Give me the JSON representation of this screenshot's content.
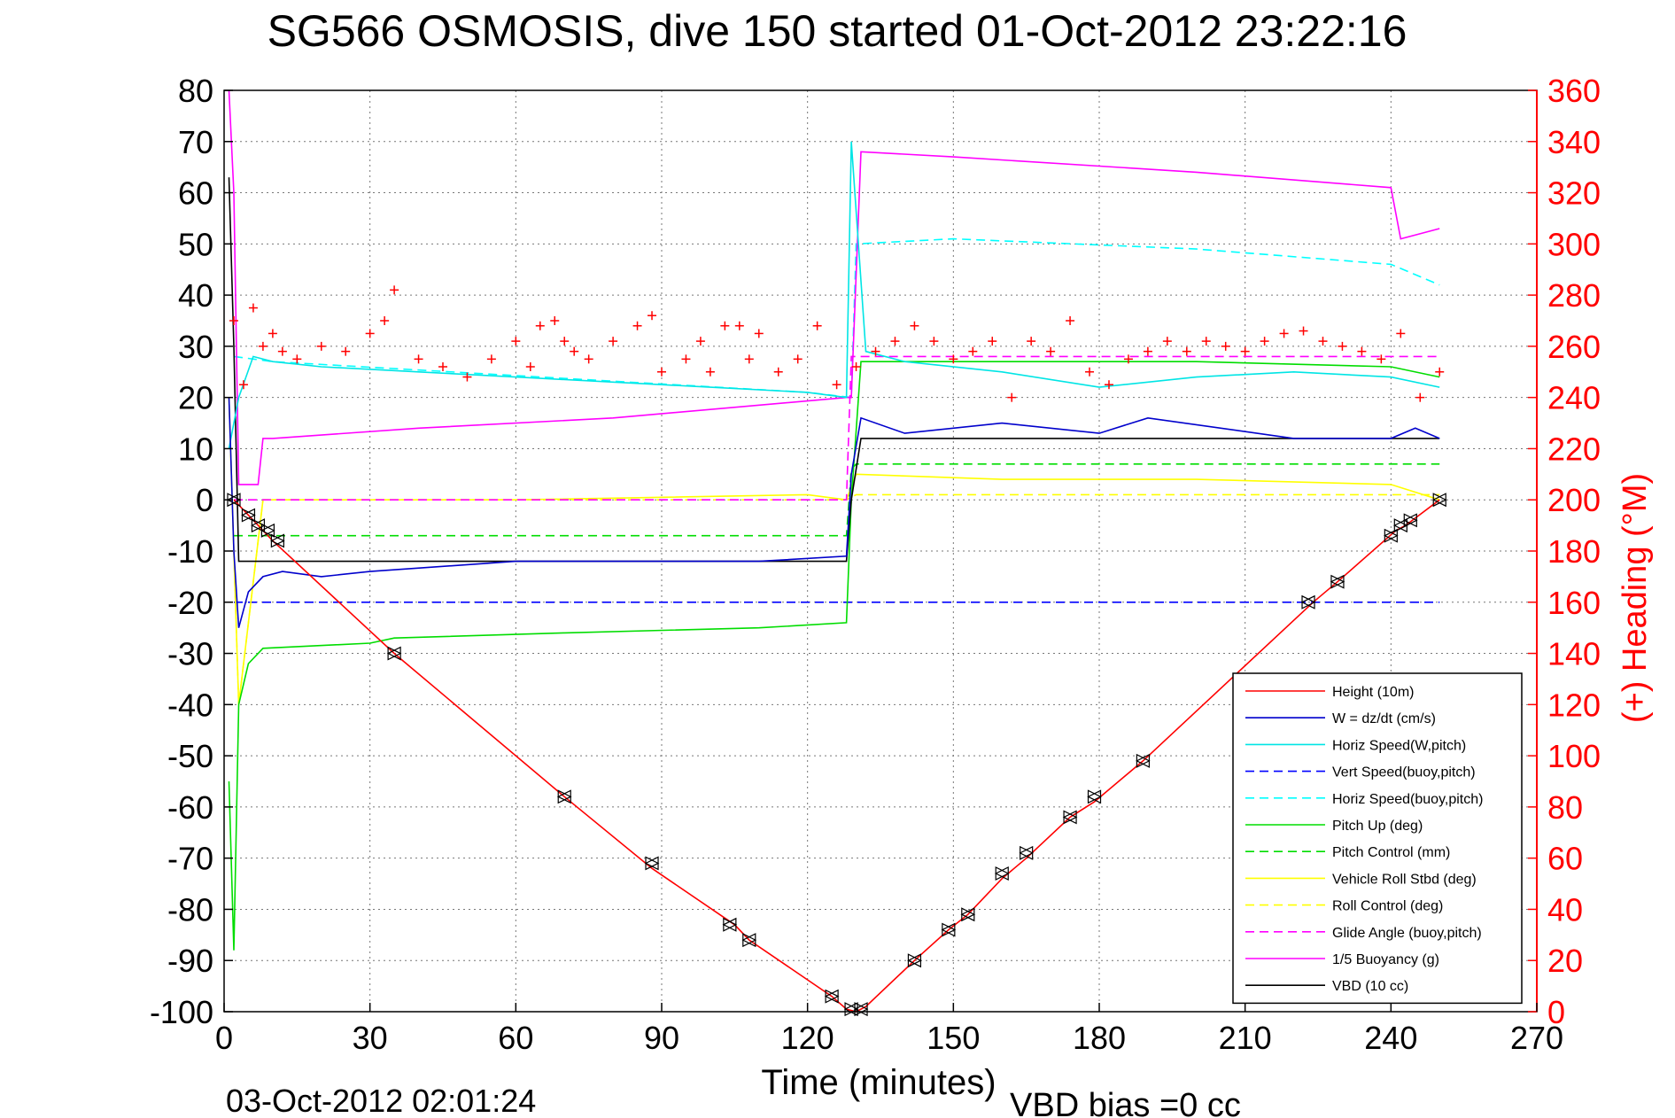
{
  "chart_data": {
    "type": "line",
    "title": "SG566 OSMOSIS, dive 150 started 01-Oct-2012 23:22:16",
    "xlabel": "Time (minutes)",
    "ylabel": "",
    "y2label": "(+) Heading (°M)",
    "footer_left": "03-Oct-2012 02:01:24",
    "footer_right": "VBD bias =0 cc",
    "xlim": [
      0,
      270
    ],
    "ylim": [
      -100,
      80
    ],
    "y2lim": [
      0,
      360
    ],
    "xticks": [
      0,
      30,
      60,
      90,
      120,
      150,
      180,
      210,
      240,
      270
    ],
    "yticks": [
      -100,
      -90,
      -80,
      -70,
      -60,
      -50,
      -40,
      -30,
      -20,
      -10,
      0,
      10,
      20,
      30,
      40,
      50,
      60,
      70,
      80
    ],
    "y2ticks": [
      0,
      20,
      40,
      60,
      80,
      100,
      120,
      140,
      160,
      180,
      200,
      220,
      240,
      260,
      280,
      300,
      320,
      340,
      360
    ],
    "grid": true,
    "legend_position": "bottom-right",
    "colors": {
      "height": "#ff0000",
      "w": "#0000cc",
      "horiz_w": "#00e5e5",
      "vert_buoy": "#0000ff",
      "horiz_buoy": "#00ffff",
      "pitch_up": "#00dd00",
      "pitch_ctl": "#00dd00",
      "roll": "#ffff00",
      "roll_ctl": "#ffff00",
      "glide": "#ff00ff",
      "buoyancy": "#ff00ff",
      "vbd": "#000000",
      "heading": "#ff0000",
      "axis_right": "#ff0000"
    },
    "series": [
      {
        "name": "Height (10m)",
        "style": "solid",
        "color": "#ff0000",
        "x": [
          2,
          10,
          35,
          70,
          88,
          105,
          108,
          125,
          128,
          130,
          132,
          142,
          149,
          153,
          160,
          165,
          174,
          179,
          189,
          224,
          229,
          241,
          243,
          250
        ],
        "y": [
          0,
          -8,
          -30,
          -58,
          -72,
          -83,
          -86,
          -97,
          -99.5,
          -100,
          -99,
          -90,
          -84,
          -81,
          -74,
          -70,
          -62,
          -59,
          -51,
          -20,
          -16,
          -6,
          -5,
          0
        ]
      },
      {
        "name": "W = dz/dt (cm/s)",
        "style": "solid",
        "color": "#0000cc",
        "x": [
          1,
          2,
          3,
          5,
          8,
          12,
          20,
          30,
          60,
          90,
          110,
          128,
          129,
          131,
          140,
          160,
          180,
          190,
          220,
          240,
          245,
          250
        ],
        "y": [
          20,
          -10,
          -25,
          -18,
          -15,
          -14,
          -15,
          -14,
          -12,
          -12,
          -12,
          -11,
          5,
          16,
          13,
          15,
          13,
          16,
          12,
          12,
          14,
          12
        ]
      },
      {
        "name": "Horiz Speed(W,pitch)",
        "style": "solid",
        "color": "#00e5e5",
        "x": [
          1,
          3,
          6,
          10,
          20,
          40,
          60,
          80,
          100,
          120,
          128,
          129,
          132,
          140,
          160,
          180,
          200,
          220,
          240,
          250
        ],
        "y": [
          10,
          20,
          28,
          27,
          26,
          25,
          24,
          23,
          22,
          21,
          20,
          70,
          29,
          27,
          25,
          22,
          24,
          25,
          24,
          22
        ]
      },
      {
        "name": "Vert Speed(buoy,pitch)",
        "style": "dashed",
        "color": "#0000ff",
        "x": [
          2,
          10,
          129,
          130,
          250
        ],
        "y": [
          -20,
          -20,
          -20,
          -20,
          -20
        ]
      },
      {
        "name": "Horiz Speed(buoy,pitch)",
        "style": "dashed",
        "color": "#00ffff",
        "x": [
          2,
          10,
          120,
          129,
          130,
          150,
          200,
          240,
          250
        ],
        "y": [
          28,
          27,
          21,
          20,
          50,
          51,
          49,
          46,
          42
        ]
      },
      {
        "name": "Pitch Up (deg)",
        "style": "solid",
        "color": "#00dd00",
        "x": [
          1,
          2,
          3,
          5,
          8,
          30,
          35,
          70,
          110,
          128,
          129,
          131,
          160,
          200,
          240,
          250
        ],
        "y": [
          -55,
          -88,
          -40,
          -32,
          -29,
          -28,
          -27,
          -26,
          -25,
          -24,
          0,
          27,
          27,
          27,
          26,
          24
        ]
      },
      {
        "name": "Pitch Control (mm)",
        "style": "dashed",
        "color": "#00dd00",
        "x": [
          2,
          8,
          128,
          129,
          130,
          250
        ],
        "y": [
          -7,
          -7,
          -7,
          6,
          7,
          7
        ]
      },
      {
        "name": "Vehicle Roll Stbd (deg)",
        "style": "solid",
        "color": "#ffff00",
        "x": [
          1,
          3,
          8,
          60,
          120,
          128,
          130,
          160,
          200,
          240,
          250
        ],
        "y": [
          20,
          -40,
          0,
          0,
          1,
          0,
          5,
          4,
          4,
          3,
          0
        ]
      },
      {
        "name": "Roll Control (deg)",
        "style": "dashed",
        "color": "#ffff00",
        "x": [
          1,
          3,
          8,
          128,
          130,
          250
        ],
        "y": [
          20,
          -40,
          0,
          0,
          1,
          1
        ]
      },
      {
        "name": "Glide Angle (buoy,pitch)",
        "style": "dashed",
        "color": "#ff00ff",
        "x": [
          2,
          128,
          129,
          130,
          250
        ],
        "y": [
          0,
          0,
          28,
          28,
          28
        ]
      },
      {
        "name": "1/5 Buoyancy (g)",
        "style": "solid",
        "color": "#ff00ff",
        "x": [
          1,
          2,
          3,
          7,
          8,
          10,
          40,
          80,
          128,
          129,
          131,
          150,
          200,
          240,
          242,
          250
        ],
        "y": [
          80,
          60,
          3,
          3,
          12,
          12,
          14,
          16,
          20,
          20,
          68,
          67,
          64,
          61,
          51,
          53
        ]
      },
      {
        "name": "VBD (10 cc)",
        "style": "solid",
        "color": "#000000",
        "x": [
          1,
          2,
          3,
          128,
          129,
          131,
          250
        ],
        "y": [
          63,
          30,
          -12,
          -12,
          0,
          12,
          12
        ]
      }
    ],
    "heading_series": {
      "marker": "+",
      "axis": "right",
      "x": [
        2,
        4,
        6,
        8,
        10,
        12,
        15,
        20,
        25,
        30,
        33,
        35,
        40,
        45,
        50,
        55,
        60,
        63,
        65,
        68,
        70,
        72,
        75,
        80,
        85,
        88,
        90,
        95,
        98,
        100,
        103,
        106,
        108,
        110,
        114,
        118,
        122,
        126,
        130,
        134,
        138,
        142,
        146,
        150,
        154,
        158,
        162,
        166,
        170,
        174,
        178,
        182,
        186,
        190,
        194,
        198,
        202,
        206,
        210,
        214,
        218,
        222,
        226,
        230,
        234,
        238,
        242,
        246,
        250
      ],
      "y": [
        270,
        245,
        275,
        260,
        265,
        258,
        255,
        260,
        258,
        265,
        270,
        282,
        255,
        252,
        248,
        255,
        262,
        252,
        268,
        270,
        262,
        258,
        255,
        262,
        268,
        272,
        250,
        255,
        262,
        250,
        268,
        268,
        255,
        265,
        250,
        255,
        268,
        245,
        252,
        258,
        262,
        268,
        262,
        255,
        258,
        262,
        240,
        262,
        258,
        270,
        250,
        245,
        255,
        258,
        262,
        258,
        262,
        260,
        258,
        262,
        265,
        266,
        262,
        260,
        258,
        255,
        265,
        240,
        250
      ]
    },
    "markers_triangle": {
      "x": [
        2,
        5,
        7,
        9,
        11,
        35,
        70,
        88,
        104,
        108,
        125,
        129,
        131,
        142,
        149,
        153,
        160,
        165,
        174,
        179,
        189,
        223,
        229,
        240,
        242,
        244,
        250
      ],
      "y": [
        0,
        -3,
        -5,
        -6,
        -8,
        -30,
        -58,
        -71,
        -83,
        -86,
        -97,
        -99.5,
        -99.5,
        -90,
        -84,
        -81,
        -73,
        -69,
        -62,
        -58,
        -51,
        -20,
        -16,
        -7,
        -5,
        -4,
        0
      ]
    }
  }
}
